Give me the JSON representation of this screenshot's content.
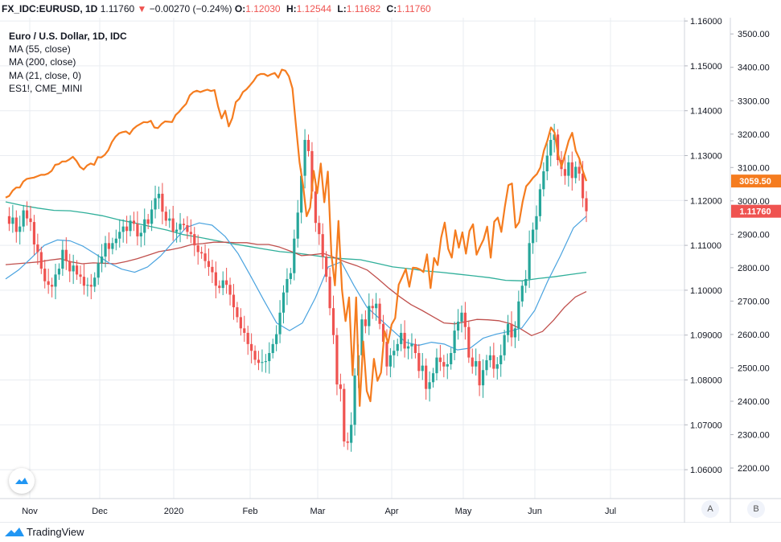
{
  "header": {
    "symbol": "FX_IDC:EURUSD, 1D",
    "last": "1.11760",
    "arrow": "▼",
    "change": "−0.00270 (−0.24%)",
    "open_label": "O:",
    "open": "1.12030",
    "high_label": "H:",
    "high": "1.12544",
    "low_label": "L:",
    "low": "1.11682",
    "close_label": "C:",
    "close": "1.11760"
  },
  "legend": {
    "title": "Euro / U.S. Dollar, 1D, IDC",
    "ma55": "MA (55, close)",
    "ma200": "MA (200, close)",
    "ma21": "MA (21, close, 0)",
    "compare": "ES1!, CME_MINI"
  },
  "price_tag": "1.11760",
  "es_tag": "3059.50",
  "scale_a": "A",
  "scale_b": "B",
  "brand": "TradingView",
  "colors": {
    "up": "#26a69a",
    "down": "#ef5350",
    "es": "#f57c1f",
    "ma55": "#4aa3df",
    "ma200": "#2faf9a",
    "ma21": "#c0504d",
    "grid": "#e9ecf1"
  },
  "chart_data": {
    "type": "line",
    "title": "Euro / U.S. Dollar, 1D, IDC",
    "x_labels": [
      "Nov",
      "Dec",
      "2020",
      "Feb",
      "Mar",
      "Apr",
      "May",
      "Jun",
      "Jul"
    ],
    "right_axis_ticks": [
      "1.16000",
      "1.15000",
      "1.14000",
      "1.13000",
      "1.12000",
      "1.11000",
      "1.10000",
      "1.09000",
      "1.08000",
      "1.07000",
      "1.06000"
    ],
    "left_axis_ticks": [
      "3500.00",
      "3400.00",
      "3300.00",
      "3200.00",
      "3100.00",
      "3000.00",
      "2900.00",
      "2800.00",
      "2700.00",
      "2600.00",
      "2500.00",
      "2400.00",
      "2300.00",
      "2200.00"
    ],
    "eurusd_ylim": [
      1.055,
      1.162
    ],
    "es_ylim": [
      2125,
      3530
    ],
    "grid": true,
    "series": [
      {
        "name": "FX_IDC:EURUSD",
        "kind": "candlestick",
        "values": [
          1.1165,
          1.1148,
          1.1162,
          1.113,
          1.1142,
          1.1178,
          1.116,
          1.1152,
          1.1102,
          1.1085,
          1.1048,
          1.102,
          1.1012,
          1.1008,
          1.1035,
          1.1048,
          1.109,
          1.1065,
          1.1042,
          1.1055,
          1.1035,
          1.103,
          1.101,
          1.1012,
          1.1008,
          1.1028,
          1.106,
          1.1075,
          1.1105,
          1.1092,
          1.1105,
          1.1115,
          1.113,
          1.1142,
          1.1132,
          1.1155,
          1.1148,
          1.112,
          1.1128,
          1.1158,
          1.1148,
          1.118,
          1.1205,
          1.1215,
          1.1175,
          1.1155,
          1.116,
          1.113,
          1.1135,
          1.1148,
          1.1145,
          1.113,
          1.1125,
          1.11,
          1.1085,
          1.1082,
          1.1065,
          1.1052,
          1.104,
          1.101,
          1.1005,
          1.1022,
          1.1012,
          1.099,
          1.0962,
          1.094,
          1.0915,
          1.0905,
          1.088,
          1.0865,
          1.0845,
          1.0838,
          1.084,
          1.0842,
          1.086,
          1.088,
          1.0902,
          1.095,
          1.0995,
          1.1025,
          1.1038,
          1.1115,
          1.1173,
          1.1255,
          1.1335,
          1.131,
          1.122,
          1.115,
          1.1125,
          1.1075,
          1.103,
          1.096,
          1.09,
          1.079,
          1.078,
          1.0663,
          1.066,
          1.07,
          1.081,
          1.0855,
          1.0935,
          1.092,
          1.0965,
          1.096,
          1.097,
          1.0925,
          1.0885,
          1.083,
          1.0855,
          1.0865,
          1.088,
          1.0905,
          1.087,
          1.0875,
          1.088,
          1.086,
          1.082,
          1.0832,
          1.078,
          1.0795,
          1.0815,
          1.085,
          1.084,
          1.083,
          1.0835,
          1.086,
          1.091,
          1.093,
          1.095,
          1.0918,
          1.085,
          1.083,
          1.0842,
          1.0788,
          1.0822,
          1.0844,
          1.0855,
          1.0825,
          1.0835,
          1.0855,
          1.09,
          1.0925,
          1.0895,
          1.0915,
          1.0975,
          1.101,
          1.1025,
          1.1105,
          1.1135,
          1.1165,
          1.1225,
          1.1265,
          1.13,
          1.1335,
          1.1347,
          1.129,
          1.127,
          1.1255,
          1.1285,
          1.125,
          1.1275,
          1.126,
          1.1205,
          1.1176
        ]
      },
      {
        "name": "ES1!, CME_MINI",
        "kind": "line",
        "values": [
          3010,
          3015,
          3031,
          3040,
          3040,
          3058,
          3066,
          3068,
          3070,
          3074,
          3078,
          3078,
          3082,
          3090,
          3108,
          3110,
          3118,
          3118,
          3124,
          3132,
          3120,
          3102,
          3094,
          3106,
          3112,
          3108,
          3131,
          3130,
          3138,
          3152,
          3176,
          3192,
          3202,
          3206,
          3208,
          3200,
          3215,
          3224,
          3230,
          3236,
          3235,
          3240,
          3220,
          3218,
          3230,
          3238,
          3237,
          3236,
          3257,
          3267,
          3280,
          3291,
          3316,
          3326,
          3330,
          3326,
          3330,
          3333,
          3329,
          3332,
          3283,
          3247,
          3270,
          3223,
          3248,
          3296,
          3306,
          3326,
          3334,
          3346,
          3359,
          3375,
          3380,
          3380,
          3374,
          3379,
          3383,
          3369,
          3393,
          3390,
          3373,
          3337,
          3225,
          3116,
          3047,
          2954,
          2980,
          3090,
          3023,
          3112,
          2996,
          3088,
          2840,
          2747,
          2940,
          2734,
          2640,
          2711,
          2478,
          2711,
          2386,
          2579,
          2431,
          2400,
          2527,
          2461,
          2486,
          2610,
          2574,
          2630,
          2649,
          2749,
          2772,
          2796,
          2743,
          2800,
          2799,
          2795,
          2787,
          2840,
          2739,
          2829,
          2808,
          2890,
          2935,
          2856,
          2830,
          2912,
          2860,
          2906,
          2842,
          2910,
          2930,
          2839,
          2863,
          2885,
          2923,
          2830,
          2938,
          2950,
          2907,
          2983,
          3047,
          3052,
          2920,
          2936,
          2998,
          3044,
          3056,
          3070,
          3080,
          3100,
          3150,
          3181,
          3220,
          3205,
          3140,
          3103,
          3141,
          3180,
          3204,
          3150,
          3127,
          3090,
          3059.5
        ]
      },
      {
        "name": "MA (55, close)",
        "kind": "line",
        "values": [
          1.1025,
          1.1045,
          1.1072,
          1.11,
          1.1112,
          1.111,
          1.1098,
          1.108,
          1.1061,
          1.1047,
          1.104,
          1.1052,
          1.1076,
          1.1108,
          1.114,
          1.115,
          1.1145,
          1.112,
          1.1082,
          1.1031,
          1.0978,
          1.0927,
          1.091,
          1.0927,
          1.0983,
          1.1052,
          1.1063,
          1.101,
          1.0962,
          1.0936,
          1.091,
          1.0884,
          1.0877,
          1.0884,
          1.088,
          1.0867,
          1.0871,
          1.0893,
          1.0902,
          1.0908,
          1.0916,
          1.0955,
          1.102,
          1.1077,
          1.1139,
          1.1165
        ]
      },
      {
        "name": "MA (200, close)",
        "kind": "line",
        "values": [
          1.1197,
          1.1189,
          1.1183,
          1.1178,
          1.1177,
          1.1172,
          1.1166,
          1.1157,
          1.115,
          1.1142,
          1.1134,
          1.1124,
          1.1118,
          1.1111,
          1.1104,
          1.1098,
          1.1092,
          1.1086,
          1.1083,
          1.1078,
          1.1073,
          1.107,
          1.1068,
          1.106,
          1.1052,
          1.1048,
          1.1043,
          1.104,
          1.1036,
          1.1032,
          1.1028,
          1.1022,
          1.1021,
          1.1026,
          1.103,
          1.1035,
          1.104
        ]
      },
      {
        "name": "MA (21, close, 0)",
        "kind": "line",
        "values": [
          1.1057,
          1.1059,
          1.1061,
          1.1063,
          1.1067,
          1.107,
          1.1063,
          1.1059,
          1.1061,
          1.106,
          1.1059,
          1.1064,
          1.107,
          1.1078,
          1.1086,
          1.109,
          1.1095,
          1.1102,
          1.1104,
          1.1107,
          1.1107,
          1.1106,
          1.1106,
          1.1102,
          1.1102,
          1.1096,
          1.1087,
          1.1077,
          1.1079,
          1.1082,
          1.1073,
          1.1063,
          1.1055,
          1.1045,
          1.1025,
          1.1004,
          1.0985,
          1.0968,
          1.0955,
          1.0941,
          1.0927,
          1.0925,
          1.093,
          1.0935,
          1.0934,
          1.0932,
          1.0926,
          1.0914,
          1.0899,
          1.0908,
          1.0933,
          1.0962,
          1.0985,
          1.0997
        ]
      }
    ]
  }
}
